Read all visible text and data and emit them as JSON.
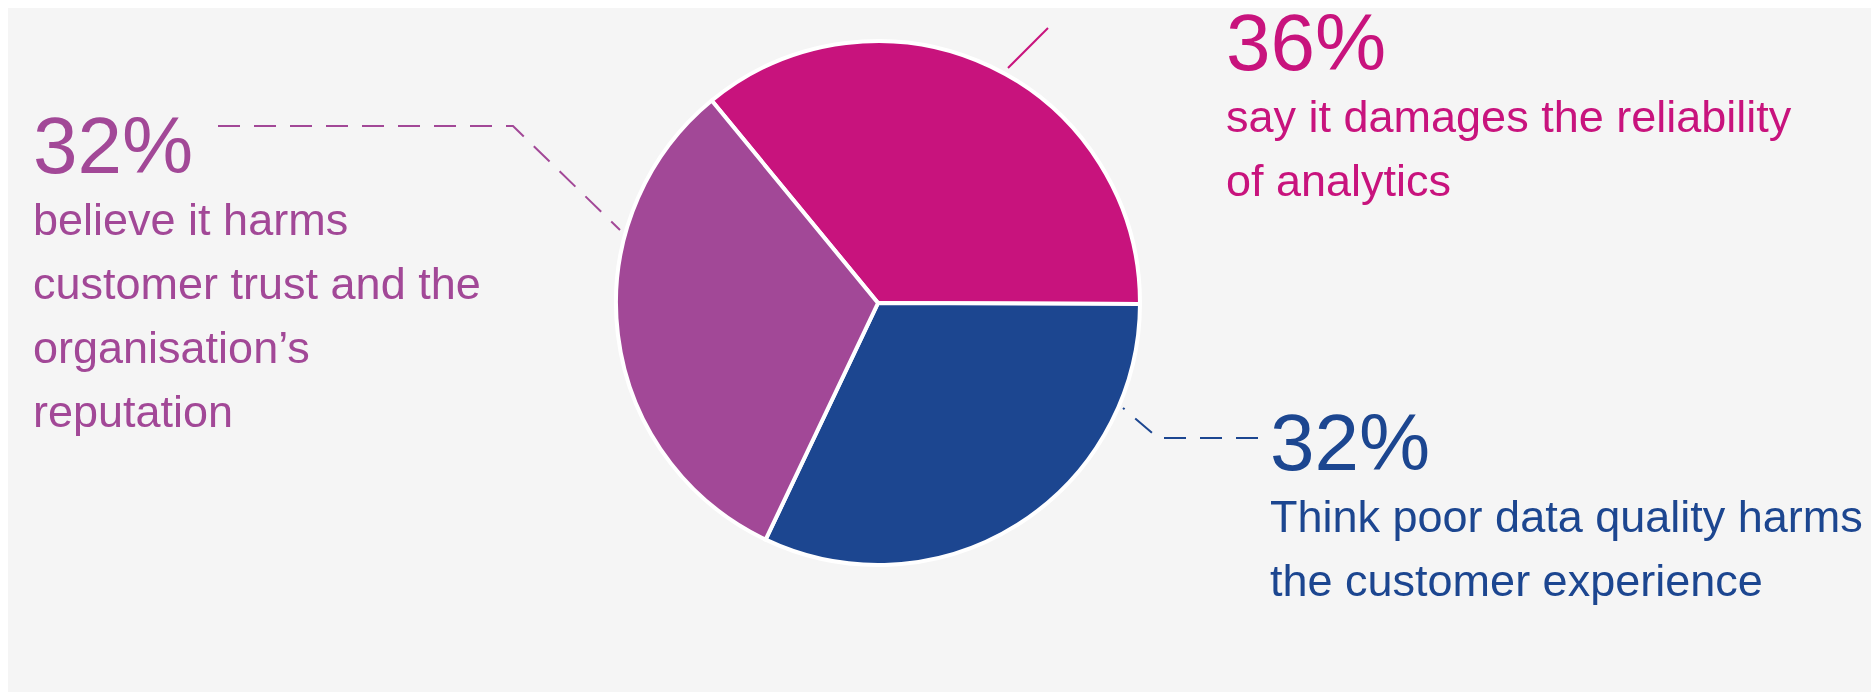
{
  "chart_data": {
    "type": "pie",
    "categories": [
      "say it damages the reliability of analytics",
      "Think poor data quality harms the customer experience",
      "believe it harms customer trust and the organisation’s reputation"
    ],
    "values": [
      36,
      32,
      32
    ],
    "colors": [
      "#c8137d",
      "#1c4690",
      "#a24897"
    ],
    "value_labels": [
      "36%",
      "32%",
      "32%"
    ]
  }
}
